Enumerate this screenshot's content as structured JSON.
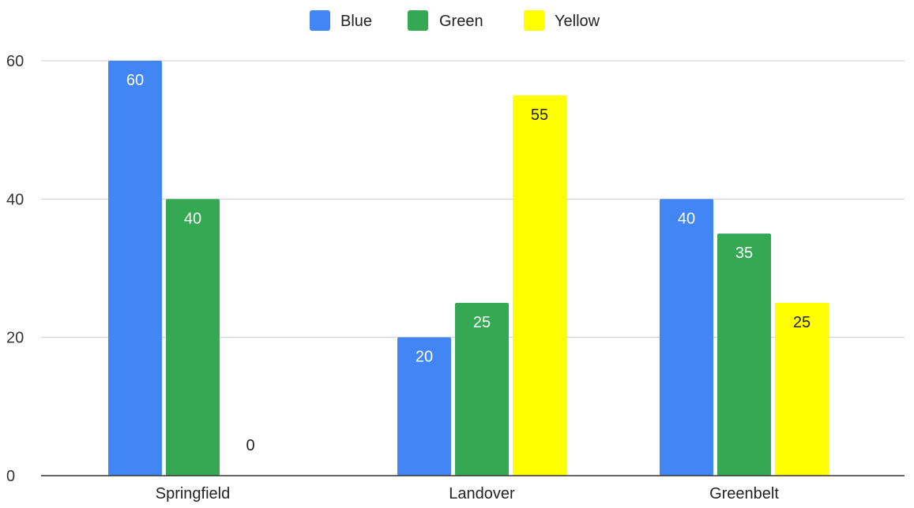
{
  "chart_data": {
    "type": "bar",
    "categories": [
      "Springfield",
      "Landover",
      "Greenbelt"
    ],
    "series": [
      {
        "name": "Blue",
        "color": "#4285f4",
        "label_color": "#ffffff",
        "values": [
          60,
          20,
          40
        ]
      },
      {
        "name": "Green",
        "color": "#34a853",
        "label_color": "#ffffff",
        "values": [
          40,
          25,
          35
        ]
      },
      {
        "name": "Yellow",
        "color": "#ffff00",
        "label_color": "#222222",
        "values": [
          0,
          55,
          25
        ]
      }
    ],
    "y_ticks": [
      "0",
      "20",
      "40",
      "60"
    ],
    "ylim": [
      0,
      60
    ],
    "grid": true,
    "legend_position": "top-center",
    "data_labels": true
  }
}
